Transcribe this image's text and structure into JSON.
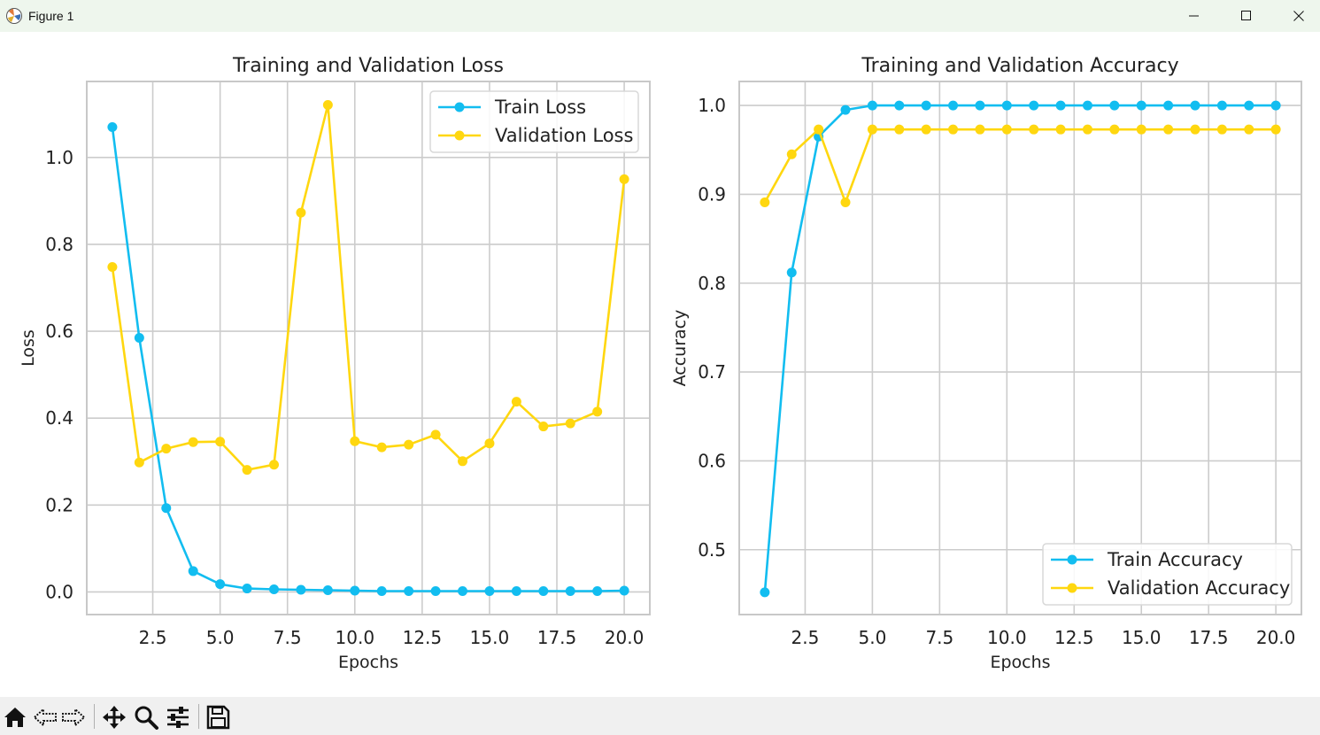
{
  "window": {
    "title": "Figure 1"
  },
  "toolbar": {
    "buttons": [
      "home-icon",
      "back-icon",
      "forward-icon",
      "pan-icon",
      "zoom-icon",
      "configure-subplots-icon",
      "save-icon"
    ]
  },
  "colors": {
    "train": "#12bdf0",
    "validation": "#ffd70f",
    "grid": "#cccccc",
    "spine": "#c8c8c8"
  },
  "chart_data": [
    {
      "type": "line",
      "title": "Training and Validation Loss",
      "xlabel": "Epochs",
      "ylabel": "Loss",
      "x": [
        1,
        2,
        3,
        4,
        5,
        6,
        7,
        8,
        9,
        10,
        11,
        12,
        13,
        14,
        15,
        16,
        17,
        18,
        19,
        20
      ],
      "xlim": [
        0.05,
        20.95
      ],
      "ylim": [
        -0.052,
        1.175
      ],
      "xticks": [
        2.5,
        5.0,
        7.5,
        10.0,
        12.5,
        15.0,
        17.5,
        20.0
      ],
      "xtick_labels": [
        "2.5",
        "5.0",
        "7.5",
        "10.0",
        "12.5",
        "15.0",
        "17.5",
        "20.0"
      ],
      "yticks": [
        0.0,
        0.2,
        0.4,
        0.6,
        0.8,
        1.0
      ],
      "ytick_labels": [
        "0.0",
        "0.2",
        "0.4",
        "0.6",
        "0.8",
        "1.0"
      ],
      "grid": true,
      "legend_position": "top-right",
      "series": [
        {
          "name": "Train Loss",
          "color_key": "train",
          "values": [
            1.07,
            0.585,
            0.193,
            0.048,
            0.018,
            0.008,
            0.006,
            0.005,
            0.004,
            0.003,
            0.002,
            0.002,
            0.002,
            0.002,
            0.002,
            0.002,
            0.002,
            0.002,
            0.002,
            0.003
          ]
        },
        {
          "name": "Validation Loss",
          "color_key": "validation",
          "values": [
            0.748,
            0.298,
            0.33,
            0.345,
            0.346,
            0.281,
            0.293,
            0.873,
            1.121,
            0.347,
            0.333,
            0.339,
            0.362,
            0.301,
            0.342,
            0.438,
            0.381,
            0.388,
            0.415,
            0.95
          ]
        }
      ]
    },
    {
      "type": "line",
      "title": "Training and Validation Accuracy",
      "xlabel": "Epochs",
      "ylabel": "Accuracy",
      "x": [
        1,
        2,
        3,
        4,
        5,
        6,
        7,
        8,
        9,
        10,
        11,
        12,
        13,
        14,
        15,
        16,
        17,
        18,
        19,
        20
      ],
      "xlim": [
        0.05,
        20.95
      ],
      "ylim": [
        0.427,
        1.027
      ],
      "xticks": [
        2.5,
        5.0,
        7.5,
        10.0,
        12.5,
        15.0,
        17.5,
        20.0
      ],
      "xtick_labels": [
        "2.5",
        "5.0",
        "7.5",
        "10.0",
        "12.5",
        "15.0",
        "17.5",
        "20.0"
      ],
      "yticks": [
        0.5,
        0.6,
        0.7,
        0.8,
        0.9,
        1.0
      ],
      "ytick_labels": [
        "0.5",
        "0.6",
        "0.7",
        "0.8",
        "0.9",
        "1.0"
      ],
      "grid": true,
      "legend_position": "bottom-right",
      "series": [
        {
          "name": "Train Accuracy",
          "color_key": "train",
          "values": [
            0.452,
            0.812,
            0.965,
            0.995,
            1.0,
            1.0,
            1.0,
            1.0,
            1.0,
            1.0,
            1.0,
            1.0,
            1.0,
            1.0,
            1.0,
            1.0,
            1.0,
            1.0,
            1.0,
            1.0
          ]
        },
        {
          "name": "Validation Accuracy",
          "color_key": "validation",
          "values": [
            0.891,
            0.945,
            0.973,
            0.891,
            0.973,
            0.973,
            0.973,
            0.973,
            0.973,
            0.973,
            0.973,
            0.973,
            0.973,
            0.973,
            0.973,
            0.973,
            0.973,
            0.973,
            0.973,
            0.973
          ]
        }
      ]
    }
  ]
}
